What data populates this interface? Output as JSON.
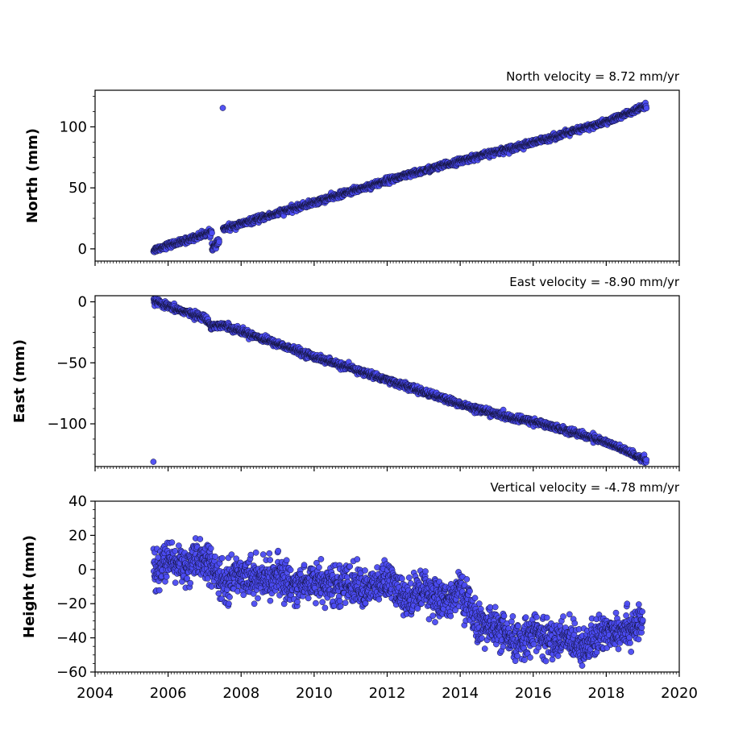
{
  "chart_data": [
    {
      "type": "scatter",
      "title": "North velocity = 8.72 mm/yr",
      "xlabel": "",
      "ylabel": "North (mm)",
      "xlim": [
        2004,
        2020
      ],
      "ylim": [
        -10,
        130
      ],
      "yticks": [
        0,
        50,
        100
      ],
      "ytick_labels": [
        "0",
        "50",
        "100"
      ],
      "xticks": [
        2004,
        2006,
        2008,
        2010,
        2012,
        2014,
        2016,
        2018,
        2020
      ],
      "xtick_labels": [],
      "grid": false,
      "series": [
        {
          "color": "#4b4bf2",
          "edge_color": "#111133",
          "segments": [
            {
              "points": [
                [
                  2005.6,
                  -1
                ],
                [
                  2006.0,
                  3
                ],
                [
                  2006.4,
                  6
                ],
                [
                  2006.8,
                  10
                ],
                [
                  2007.2,
                  14
                ]
              ]
            },
            {
              "points": [
                [
                  2007.2,
                  0
                ],
                [
                  2007.4,
                  6
                ]
              ]
            },
            {
              "points": [
                [
                  2007.5,
                  16
                ],
                [
                  2010.0,
                  38
                ],
                [
                  2012.0,
                  56
                ],
                [
                  2014.0,
                  72
                ],
                [
                  2016.0,
                  87
                ],
                [
                  2018.0,
                  104
                ],
                [
                  2019.1,
                  117
                ]
              ]
            }
          ],
          "noise": 1.2,
          "density_per_year": 150
        }
      ]
    },
    {
      "type": "scatter",
      "title": "East velocity = -8.90 mm/yr",
      "xlabel": "",
      "ylabel": "East (mm)",
      "xlim": [
        2004,
        2020
      ],
      "ylim": [
        -135,
        5
      ],
      "yticks": [
        0,
        -50,
        -100
      ],
      "ytick_labels": [
        "0",
        "−50",
        "−100"
      ],
      "xticks": [
        2004,
        2006,
        2008,
        2010,
        2012,
        2014,
        2016,
        2018,
        2020
      ],
      "xtick_labels": [],
      "grid": false,
      "series": [
        {
          "color": "#4b4bf2",
          "edge_color": "#111133",
          "segments": [
            {
              "points": [
                [
                  2005.6,
                  1
                ],
                [
                  2006.0,
                  -4
                ],
                [
                  2007.0,
                  -13
                ],
                [
                  2007.2,
                  -20
                ],
                [
                  2007.5,
                  -19
                ],
                [
                  2008.0,
                  -24
                ],
                [
                  2010.0,
                  -45
                ],
                [
                  2012.0,
                  -64
                ],
                [
                  2014.0,
                  -84
                ],
                [
                  2015.5,
                  -96
                ],
                [
                  2016.0,
                  -98
                ],
                [
                  2017.0,
                  -106
                ],
                [
                  2018.0,
                  -115
                ],
                [
                  2019.1,
                  -130
                ]
              ]
            }
          ],
          "noise": 1.3,
          "density_per_year": 150
        }
      ]
    },
    {
      "type": "scatter",
      "title": "Vertical velocity = -4.78 mm/yr",
      "xlabel": "",
      "ylabel": "Height (mm)",
      "xlim": [
        2004,
        2020
      ],
      "ylim": [
        -60,
        40
      ],
      "yticks": [
        -60,
        -40,
        -20,
        0,
        20,
        40
      ],
      "ytick_labels": [
        "−60",
        "−40",
        "−20",
        "0",
        "20",
        "40"
      ],
      "xticks": [
        2004,
        2006,
        2008,
        2010,
        2012,
        2014,
        2016,
        2018,
        2020
      ],
      "xtick_labels": [
        "2004",
        "2006",
        "2008",
        "2010",
        "2012",
        "2014",
        "2016",
        "2018",
        "2020"
      ],
      "grid": false,
      "series": [
        {
          "color": "#4b4bf2",
          "edge_color": "#111133",
          "segments": [
            {
              "points": [
                [
                  2005.6,
                  -2
                ],
                [
                  2006.0,
                  5
                ],
                [
                  2006.5,
                  2
                ],
                [
                  2007.0,
                  6
                ],
                [
                  2007.5,
                  -8
                ],
                [
                  2008.0,
                  -2
                ],
                [
                  2008.5,
                  -6
                ],
                [
                  2009.0,
                  -4
                ],
                [
                  2009.5,
                  -10
                ],
                [
                  2010.0,
                  -6
                ],
                [
                  2010.5,
                  -10
                ],
                [
                  2011.0,
                  -8
                ],
                [
                  2011.5,
                  -12
                ],
                [
                  2012.0,
                  -6
                ],
                [
                  2012.5,
                  -18
                ],
                [
                  2013.0,
                  -10
                ],
                [
                  2013.5,
                  -20
                ],
                [
                  2014.0,
                  -12
                ],
                [
                  2014.5,
                  -32
                ],
                [
                  2015.0,
                  -34
                ],
                [
                  2015.5,
                  -44
                ],
                [
                  2016.0,
                  -36
                ],
                [
                  2016.5,
                  -42
                ],
                [
                  2017.0,
                  -40
                ],
                [
                  2017.5,
                  -45
                ],
                [
                  2018.0,
                  -36
                ],
                [
                  2018.5,
                  -34
                ],
                [
                  2019.0,
                  -32
                ]
              ]
            }
          ],
          "noise": 5.5,
          "density_per_year": 150
        }
      ]
    }
  ]
}
